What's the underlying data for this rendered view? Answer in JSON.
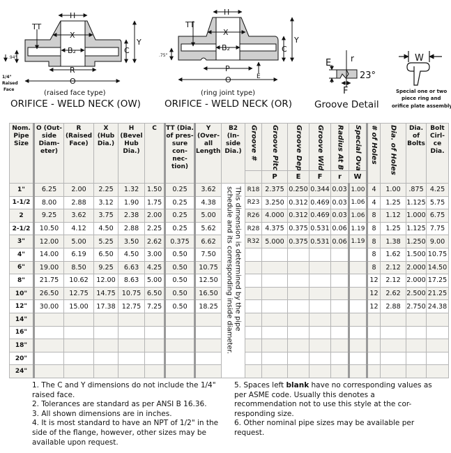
{
  "diagrams": {
    "ow": {
      "subtitle": "(raised face type)",
      "title": "ORIFICE - WELD NECK (OW)",
      "labels": {
        "H": "H",
        "X": "X",
        "B2": "B₂",
        "TT": "TT",
        "Y": "Y",
        "C": "C",
        "R": "R",
        "O": "O",
        "dim": ".94\"",
        "rf1": "1/4\"",
        "rf2": "Raised",
        "rf3": "Face"
      }
    },
    "or": {
      "subtitle": "(ring joint type)",
      "title": "ORIFICE - WELD NECK (OR)",
      "labels": {
        "H": "H",
        "X": "X",
        "B2": "B₂",
        "TT": "TT",
        "Y": "Y",
        "C": "C",
        "P": "P",
        "O": "O",
        "E": "E",
        "dim": ".75\""
      }
    },
    "groove": {
      "title": "Groove Detail",
      "labels": {
        "E": "E",
        "r": "r",
        "angle": "23°",
        "F": "F"
      }
    },
    "ring": {
      "label": "W",
      "caption": [
        "Special one or two",
        "piece ring and",
        "orifice plate assembly"
      ]
    }
  },
  "table": {
    "headers": {
      "nom": "Nom. Pipe Size",
      "o": "O (Out-side Diam-eter)",
      "r": "R (Raised Face)",
      "x": "X (Hub Dia.)",
      "h": "H (Bevel Hub Dia.)",
      "c": "C",
      "tt": "TT (Dia. of pres-sure con-nec-tion)",
      "y": "Y (Over-all Length)",
      "b2": "B2 (In-side Dia.)",
      "groove_no": "Groove #",
      "p": "Groove Pitch Dia.",
      "e": "Groove Depth",
      "f": "Groove Width",
      "rr": "Radius At Bottom",
      "w": "Special Oval",
      "holes": "# of Holes",
      "dia_holes": "Dia. of Holes",
      "dia_bolts": "Dia. of Bolts",
      "bolt_circle": "Bolt Cirl-ce Dia."
    },
    "subheaders": {
      "p": "P",
      "e": "E",
      "f": "F",
      "r": "r",
      "w": "W"
    },
    "b2_note": "This dimension is determined by the pipe\nschedule and its corresponding inside diameter.",
    "rows": [
      [
        "1\"",
        "6.25",
        "2.00",
        "2.25",
        "1.32",
        "1.50",
        "0.25",
        "3.62",
        "R18",
        "2.375",
        "0.250",
        "0.344",
        "0.03",
        "1.00",
        "4",
        "1.00",
        ".875",
        "4.25"
      ],
      [
        "1-1/2",
        "8.00",
        "2.88",
        "3.12",
        "1.90",
        "1.75",
        "0.25",
        "4.38",
        "R23",
        "3.250",
        "0.312",
        "0.469",
        "0.03",
        "1.06",
        "4",
        "1.25",
        "1.125",
        "5.75"
      ],
      [
        "2",
        "9.25",
        "3.62",
        "3.75",
        "2.38",
        "2.00",
        "0.25",
        "5.00",
        "R26",
        "4.000",
        "0.312",
        "0.469",
        "0.03",
        "1.06",
        "8",
        "1.12",
        "1.000",
        "6.75"
      ],
      [
        "2-1/2",
        "10.50",
        "4.12",
        "4.50",
        "2.88",
        "2.25",
        "0.25",
        "5.62",
        "R28",
        "4.375",
        "0.375",
        "0.531",
        "0.06",
        "1.19",
        "8",
        "1.25",
        "1.125",
        "7.75"
      ],
      [
        "3\"",
        "12.00",
        "5.00",
        "5.25",
        "3.50",
        "2.62",
        "0.375",
        "6.62",
        "R32",
        "5.000",
        "0.375",
        "0.531",
        "0.06",
        "1.19",
        "8",
        "1.38",
        "1.250",
        "9.00"
      ],
      [
        "4\"",
        "14.00",
        "6.19",
        "6.50",
        "4.50",
        "3.00",
        "0.50",
        "7.50",
        "",
        "",
        "",
        "",
        "",
        "",
        "8",
        "1.62",
        "1.500",
        "10.75"
      ],
      [
        "6\"",
        "19.00",
        "8.50",
        "9.25",
        "6.63",
        "4.25",
        "0.50",
        "10.75",
        "",
        "",
        "",
        "",
        "",
        "",
        "8",
        "2.12",
        "2.000",
        "14.50"
      ],
      [
        "8\"",
        "21.75",
        "10.62",
        "12.00",
        "8.63",
        "5.00",
        "0.50",
        "12.50",
        "",
        "",
        "",
        "",
        "",
        "",
        "12",
        "2.12",
        "2.000",
        "17.25"
      ],
      [
        "10\"",
        "26.50",
        "12.75",
        "14.75",
        "10.75",
        "6.50",
        "0.50",
        "16.50",
        "",
        "",
        "",
        "",
        "",
        "",
        "12",
        "2.62",
        "2.500",
        "21.25"
      ],
      [
        "12\"",
        "30.00",
        "15.00",
        "17.38",
        "12.75",
        "7.25",
        "0.50",
        "18.25",
        "",
        "",
        "",
        "",
        "",
        "",
        "12",
        "2.88",
        "2.750",
        "24.38"
      ],
      [
        "14\"",
        "",
        "",
        "",
        "",
        "",
        "",
        "",
        "",
        "",
        "",
        "",
        "",
        "",
        "",
        "",
        "",
        ""
      ],
      [
        "16\"",
        "",
        "",
        "",
        "",
        "",
        "",
        "",
        "",
        "",
        "",
        "",
        "",
        "",
        "",
        "",
        "",
        ""
      ],
      [
        "18\"",
        "",
        "",
        "",
        "",
        "",
        "",
        "",
        "",
        "",
        "",
        "",
        "",
        "",
        "",
        "",
        "",
        ""
      ],
      [
        "20\"",
        "",
        "",
        "",
        "",
        "",
        "",
        "",
        "",
        "",
        "",
        "",
        "",
        "",
        "",
        "",
        "",
        ""
      ],
      [
        "24\"",
        "",
        "",
        "",
        "",
        "",
        "",
        "",
        "",
        "",
        "",
        "",
        "",
        "",
        "",
        "",
        "",
        ""
      ]
    ]
  },
  "notes": {
    "n1": "1.  The C and Y dimensions do not include the 1/4\" raised face.",
    "n2": "2.  Tolerances are standard as per ANSI B 16.36.",
    "n3": "3.  All shown dimensions are in inches.",
    "n4": "4.  It is most standard to have an NPT of 1/2\" in the side of the flange, however, other sizes may be available upon request.",
    "n5_pre": "5.  Spaces left ",
    "n5_bold": "blank",
    "n5_post": " have no corresponding values as per ASME code.  Usually this denotes a recommendation not to use this style at the cor-responding size.",
    "n6": "6.  Other nominal pipe sizes may be available per request."
  }
}
